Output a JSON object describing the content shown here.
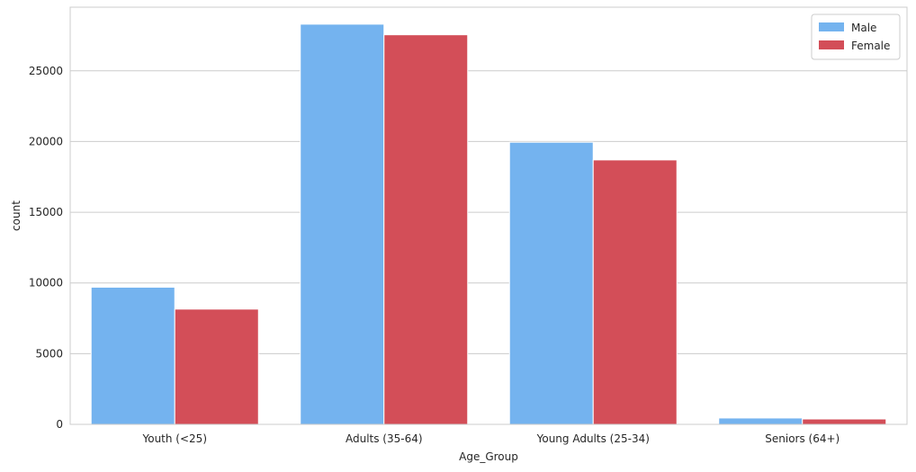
{
  "chart_data": {
    "type": "bar",
    "title": "",
    "xlabel": "Age_Group",
    "ylabel": "count",
    "categories": [
      "Youth (<25)",
      "Adults (35-64)",
      "Young Adults (25-34)",
      "Seniors (64+)"
    ],
    "series": [
      {
        "name": "Male",
        "color": "#74B3EF",
        "values": [
          9700,
          28300,
          19950,
          450
        ]
      },
      {
        "name": "Female",
        "color": "#D34E58",
        "values": [
          8150,
          27550,
          18700,
          380
        ]
      }
    ],
    "ylim": [
      0,
      29500
    ],
    "yticks": [
      0,
      5000,
      10000,
      15000,
      20000,
      25000
    ],
    "grid": true,
    "legend_position": "top-right"
  }
}
